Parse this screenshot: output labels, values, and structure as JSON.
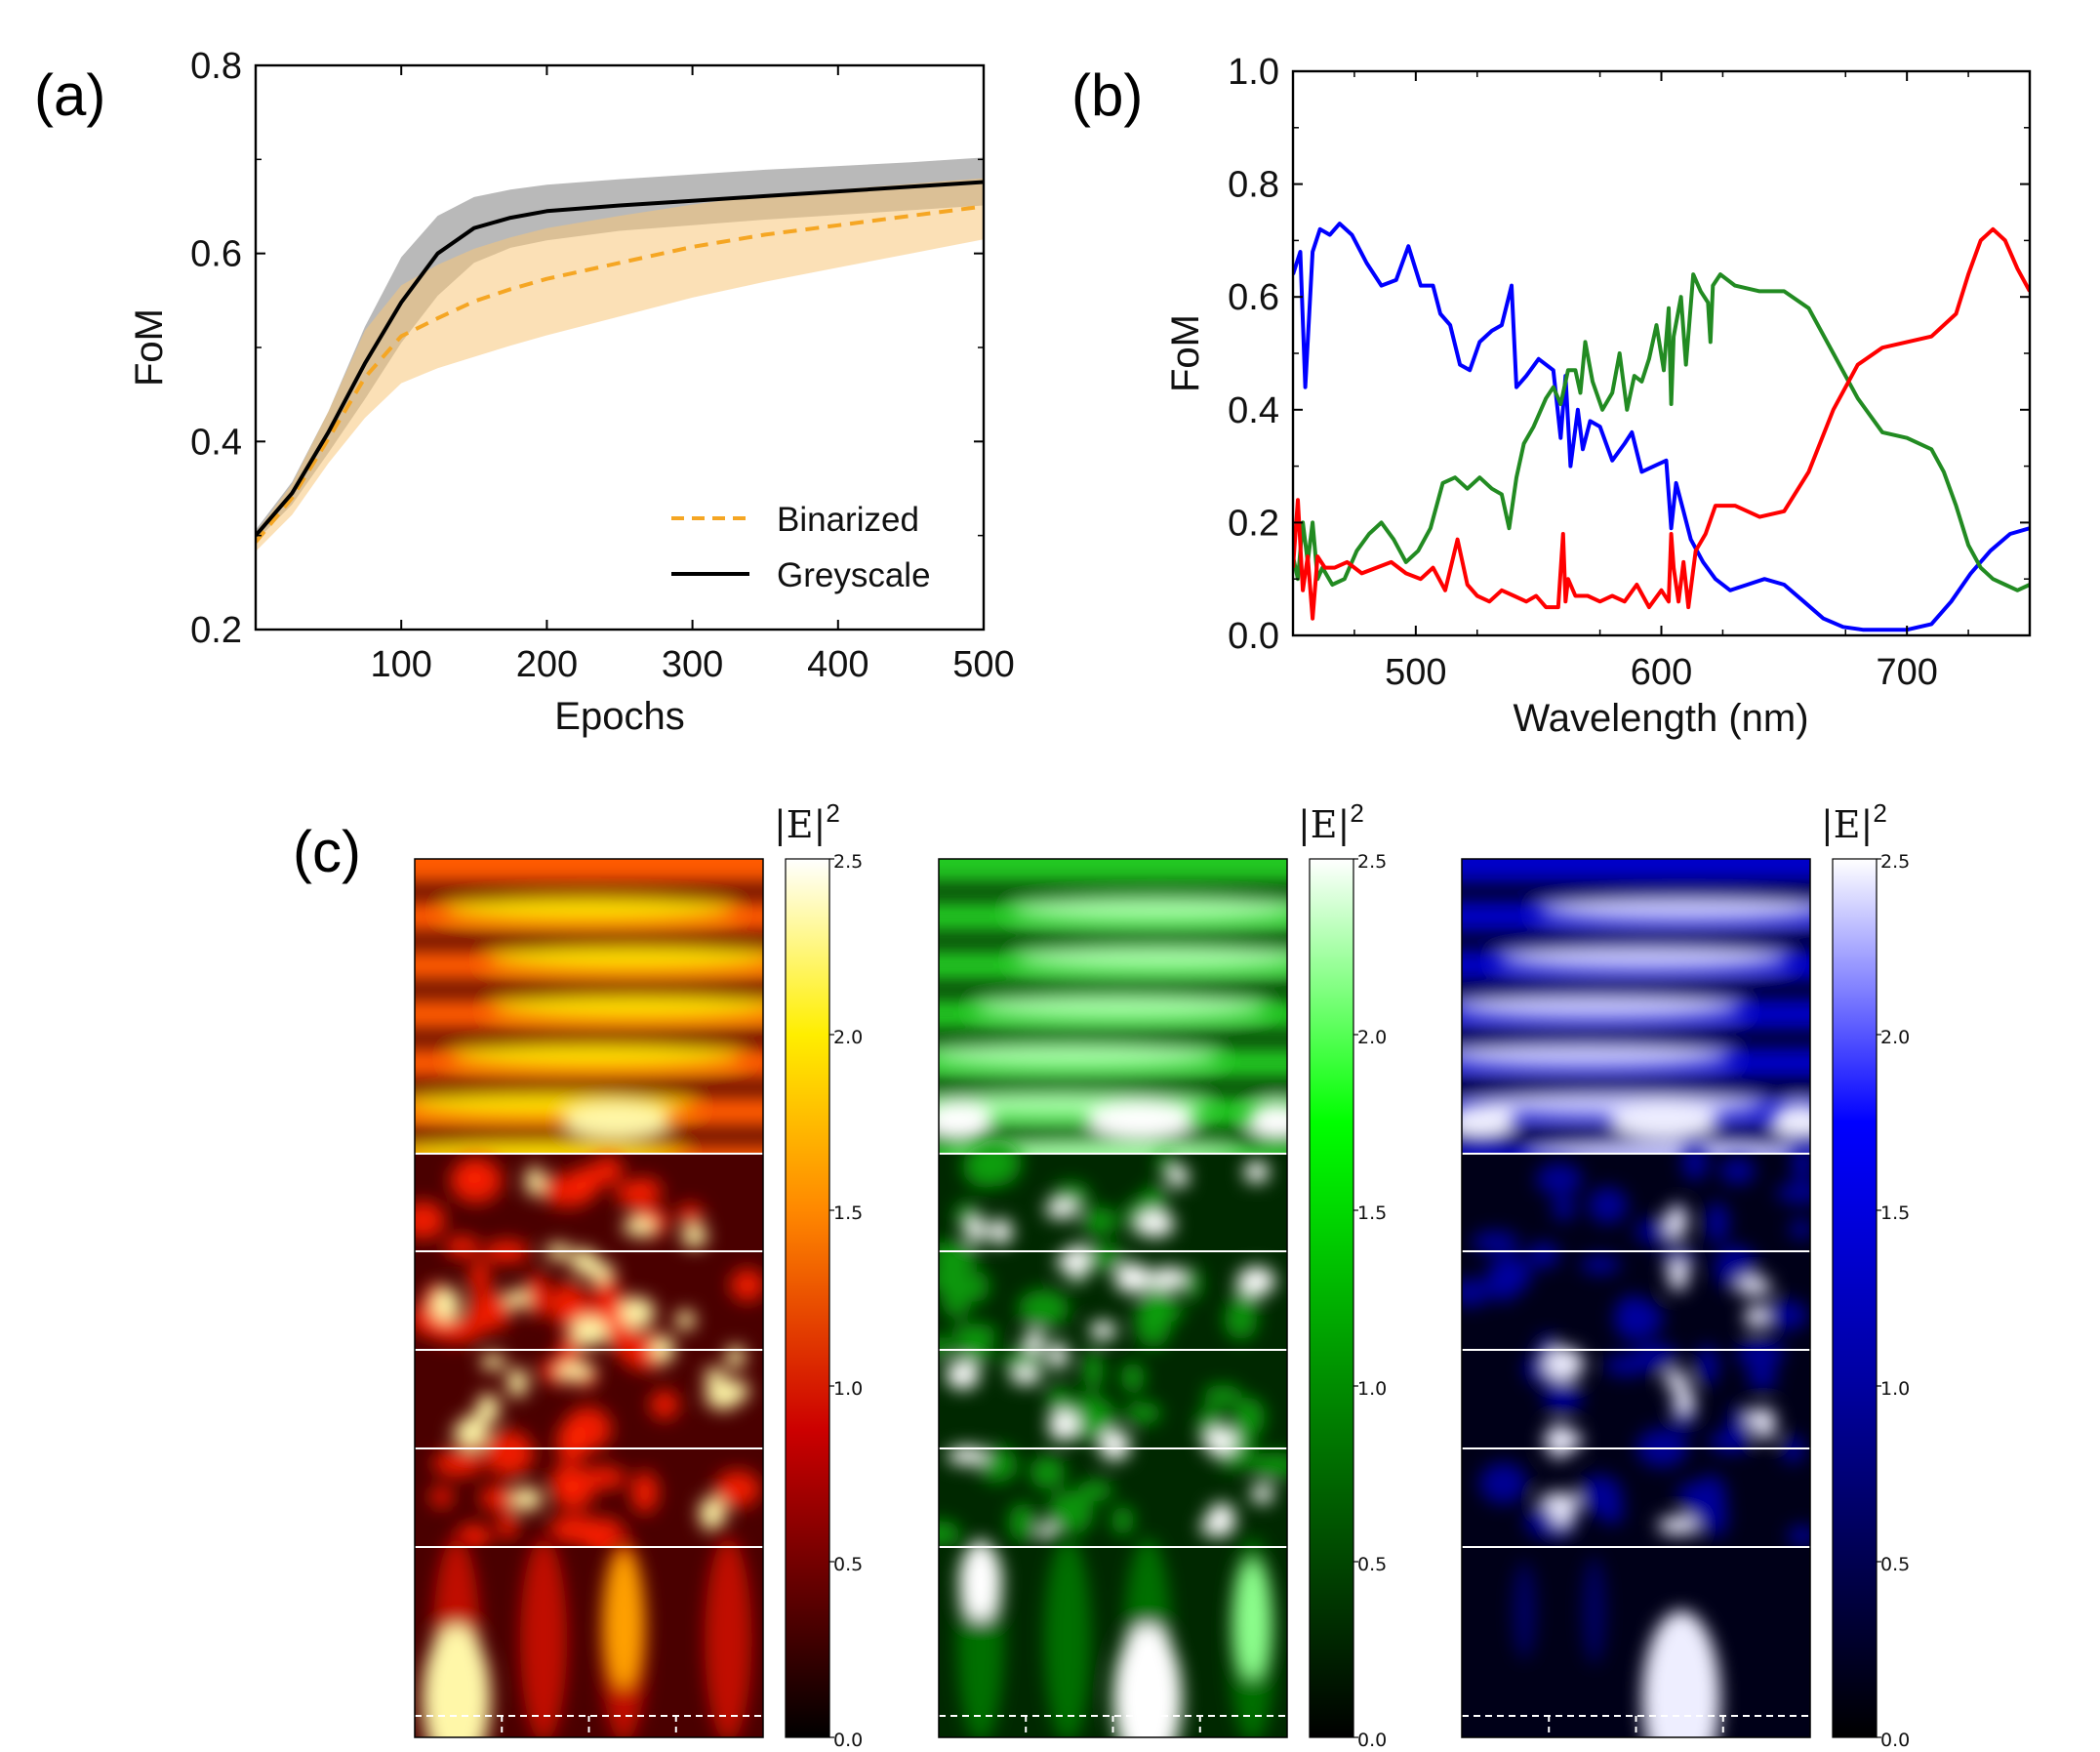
{
  "chart_data": [
    {
      "panel": "(a)",
      "type": "line",
      "xlabel": "Epochs",
      "ylabel": "FoM",
      "xlim": [
        0,
        500
      ],
      "ylim": [
        0.2,
        0.8
      ],
      "xticks": [
        "100",
        "200",
        "300",
        "400",
        "500"
      ],
      "yticks": [
        "0.2",
        "0.4",
        "0.6",
        "0.8"
      ],
      "legend_position": "bottom-right",
      "series": [
        {
          "name": "Binarized",
          "color": "#f5a623",
          "style": "dashed",
          "x": [
            0,
            25,
            50,
            75,
            100,
            125,
            150,
            175,
            200,
            250,
            300,
            350,
            400,
            450,
            500
          ],
          "mean": [
            0.293,
            0.34,
            0.403,
            0.468,
            0.512,
            0.531,
            0.549,
            0.562,
            0.573,
            0.59,
            0.607,
            0.62,
            0.63,
            0.64,
            0.65
          ],
          "upper": [
            0.303,
            0.355,
            0.432,
            0.518,
            0.566,
            0.588,
            0.605,
            0.617,
            0.627,
            0.64,
            0.652,
            0.662,
            0.668,
            0.674,
            0.68
          ],
          "lower": [
            0.283,
            0.322,
            0.377,
            0.425,
            0.462,
            0.478,
            0.49,
            0.502,
            0.513,
            0.533,
            0.553,
            0.57,
            0.585,
            0.6,
            0.615
          ]
        },
        {
          "name": "Greyscale",
          "color": "#000000",
          "style": "solid",
          "x": [
            0,
            25,
            50,
            75,
            100,
            125,
            150,
            175,
            200,
            250,
            300,
            350,
            400,
            450,
            500
          ],
          "mean": [
            0.3,
            0.345,
            0.41,
            0.483,
            0.548,
            0.6,
            0.627,
            0.638,
            0.645,
            0.651,
            0.656,
            0.661,
            0.666,
            0.671,
            0.676
          ],
          "upper": [
            0.306,
            0.357,
            0.432,
            0.522,
            0.596,
            0.64,
            0.66,
            0.668,
            0.673,
            0.679,
            0.684,
            0.689,
            0.693,
            0.697,
            0.702
          ],
          "lower": [
            0.294,
            0.333,
            0.388,
            0.445,
            0.505,
            0.555,
            0.59,
            0.606,
            0.614,
            0.624,
            0.63,
            0.636,
            0.641,
            0.646,
            0.651
          ]
        }
      ]
    },
    {
      "panel": "(b)",
      "type": "line",
      "xlabel": "Wavelength (nm)",
      "ylabel": "FoM",
      "xlim": [
        450,
        750
      ],
      "ylim": [
        0.0,
        1.0
      ],
      "xticks": [
        "500",
        "600",
        "700"
      ],
      "yticks": [
        "0.0",
        "0.2",
        "0.4",
        "0.6",
        "0.8",
        "1.0"
      ],
      "series": [
        {
          "color": "#0000ff",
          "x": [
            450,
            453,
            455,
            458,
            461,
            465,
            469,
            474,
            480,
            486,
            492,
            497,
            502,
            507,
            510,
            514,
            518,
            522,
            526,
            531,
            535,
            539,
            541,
            545,
            550,
            556,
            559,
            561,
            563,
            566,
            568,
            571,
            575,
            580,
            585,
            588,
            592,
            597,
            602,
            604,
            606,
            609,
            612,
            617,
            622,
            628,
            635,
            642,
            650,
            658,
            666,
            674,
            682,
            690,
            700,
            710,
            718,
            726,
            734,
            742,
            750
          ],
          "y": [
            0.64,
            0.68,
            0.44,
            0.68,
            0.72,
            0.71,
            0.73,
            0.71,
            0.66,
            0.62,
            0.63,
            0.69,
            0.62,
            0.62,
            0.57,
            0.55,
            0.48,
            0.47,
            0.52,
            0.54,
            0.55,
            0.62,
            0.44,
            0.46,
            0.49,
            0.47,
            0.35,
            0.46,
            0.3,
            0.4,
            0.33,
            0.38,
            0.37,
            0.31,
            0.34,
            0.36,
            0.29,
            0.3,
            0.31,
            0.19,
            0.27,
            0.22,
            0.17,
            0.13,
            0.1,
            0.08,
            0.09,
            0.1,
            0.09,
            0.06,
            0.03,
            0.015,
            0.01,
            0.01,
            0.01,
            0.02,
            0.06,
            0.11,
            0.15,
            0.18,
            0.19
          ]
        },
        {
          "color": "#228b22",
          "x": [
            450,
            452,
            454,
            456,
            458,
            460,
            462,
            466,
            471,
            476,
            481,
            486,
            491,
            496,
            501,
            506,
            511,
            516,
            521,
            526,
            531,
            535,
            538,
            541,
            544,
            548,
            553,
            556,
            559,
            562,
            565,
            567,
            569,
            572,
            576,
            580,
            583,
            586,
            589,
            592,
            595,
            598,
            601,
            603,
            604,
            605,
            608,
            610,
            613,
            616,
            619,
            620,
            621,
            624,
            630,
            640,
            650,
            660,
            670,
            680,
            690,
            700,
            710,
            715,
            720,
            725,
            730,
            735,
            740,
            745,
            750
          ],
          "y": [
            0.14,
            0.1,
            0.2,
            0.13,
            0.2,
            0.1,
            0.12,
            0.09,
            0.1,
            0.15,
            0.18,
            0.2,
            0.17,
            0.13,
            0.15,
            0.19,
            0.27,
            0.28,
            0.26,
            0.28,
            0.26,
            0.25,
            0.19,
            0.28,
            0.34,
            0.37,
            0.42,
            0.44,
            0.41,
            0.47,
            0.47,
            0.43,
            0.52,
            0.45,
            0.4,
            0.43,
            0.5,
            0.4,
            0.46,
            0.45,
            0.49,
            0.55,
            0.47,
            0.58,
            0.41,
            0.53,
            0.6,
            0.48,
            0.64,
            0.61,
            0.59,
            0.52,
            0.62,
            0.64,
            0.62,
            0.61,
            0.61,
            0.58,
            0.5,
            0.42,
            0.36,
            0.35,
            0.33,
            0.29,
            0.23,
            0.16,
            0.12,
            0.1,
            0.09,
            0.08,
            0.09
          ]
        },
        {
          "color": "#ff0000",
          "x": [
            450,
            452,
            454,
            456,
            458,
            460,
            463,
            467,
            472,
            478,
            484,
            490,
            496,
            502,
            507,
            512,
            517,
            521,
            525,
            530,
            535,
            540,
            545,
            549,
            553,
            558,
            560,
            561,
            562,
            565,
            570,
            575,
            580,
            585,
            590,
            595,
            600,
            603,
            604,
            605,
            607,
            609,
            611,
            614,
            618,
            622,
            630,
            640,
            650,
            660,
            670,
            680,
            690,
            700,
            710,
            720,
            725,
            730,
            735,
            740,
            745,
            750
          ],
          "y": [
            0.12,
            0.24,
            0.08,
            0.14,
            0.03,
            0.14,
            0.12,
            0.12,
            0.13,
            0.11,
            0.12,
            0.13,
            0.11,
            0.1,
            0.12,
            0.08,
            0.17,
            0.09,
            0.07,
            0.06,
            0.08,
            0.07,
            0.06,
            0.07,
            0.05,
            0.05,
            0.18,
            0.06,
            0.1,
            0.07,
            0.07,
            0.06,
            0.07,
            0.06,
            0.09,
            0.05,
            0.08,
            0.06,
            0.18,
            0.12,
            0.06,
            0.13,
            0.05,
            0.15,
            0.18,
            0.23,
            0.23,
            0.21,
            0.22,
            0.29,
            0.4,
            0.48,
            0.51,
            0.52,
            0.53,
            0.57,
            0.64,
            0.7,
            0.72,
            0.7,
            0.65,
            0.61
          ]
        }
      ]
    },
    {
      "panel": "(c)",
      "type": "heatmap",
      "colorbar_label": "|E|²",
      "colorbar_ticks": [
        "0.0",
        "0.5",
        "1.0",
        "1.5",
        "2.0",
        "2.5"
      ],
      "colorbar_range": [
        0.0,
        2.5
      ],
      "colormaps": [
        "hot",
        "green",
        "blue"
      ]
    }
  ],
  "labels": {
    "panel_a": "(a)",
    "panel_b": "(b)",
    "panel_c": "(c)",
    "legend_binarized": "Binarized",
    "legend_greyscale": "Greyscale",
    "colorbar_label_base": "|E|",
    "colorbar_label_exp": "2"
  }
}
